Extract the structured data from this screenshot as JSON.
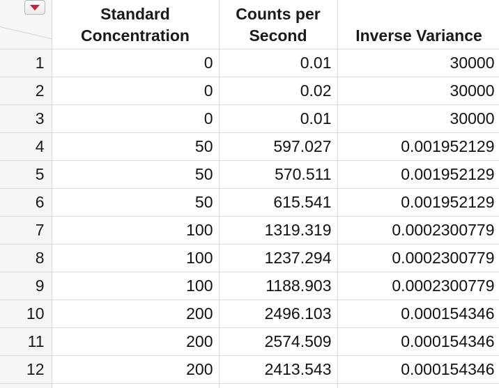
{
  "table": {
    "columns": [
      {
        "label": "Standard Concentration"
      },
      {
        "label": "Counts per Second"
      },
      {
        "label": "Inverse Variance"
      }
    ],
    "rows": [
      {
        "num": "1",
        "std": "0",
        "cps": "0.01",
        "inv": "30000"
      },
      {
        "num": "2",
        "std": "0",
        "cps": "0.02",
        "inv": "30000"
      },
      {
        "num": "3",
        "std": "0",
        "cps": "0.01",
        "inv": "30000"
      },
      {
        "num": "4",
        "std": "50",
        "cps": "597.027",
        "inv": "0.001952129"
      },
      {
        "num": "5",
        "std": "50",
        "cps": "570.511",
        "inv": "0.001952129"
      },
      {
        "num": "6",
        "std": "50",
        "cps": "615.541",
        "inv": "0.001952129"
      },
      {
        "num": "7",
        "std": "100",
        "cps": "1319.319",
        "inv": "0.0002300779"
      },
      {
        "num": "8",
        "std": "100",
        "cps": "1237.294",
        "inv": "0.0002300779"
      },
      {
        "num": "9",
        "std": "100",
        "cps": "1188.903",
        "inv": "0.0002300779"
      },
      {
        "num": "10",
        "std": "200",
        "cps": "2496.103",
        "inv": "0.000154346"
      },
      {
        "num": "11",
        "std": "200",
        "cps": "2574.509",
        "inv": "0.000154346"
      },
      {
        "num": "12",
        "std": "200",
        "cps": "2413.543",
        "inv": "0.000154346"
      }
    ]
  },
  "icons": {
    "menu": "red-triangle-menu-icon"
  },
  "colors": {
    "menu_triangle": "#cc1f3a",
    "grid_line": "#d9d9d9",
    "row_header_bg": "#f6f6f6"
  }
}
